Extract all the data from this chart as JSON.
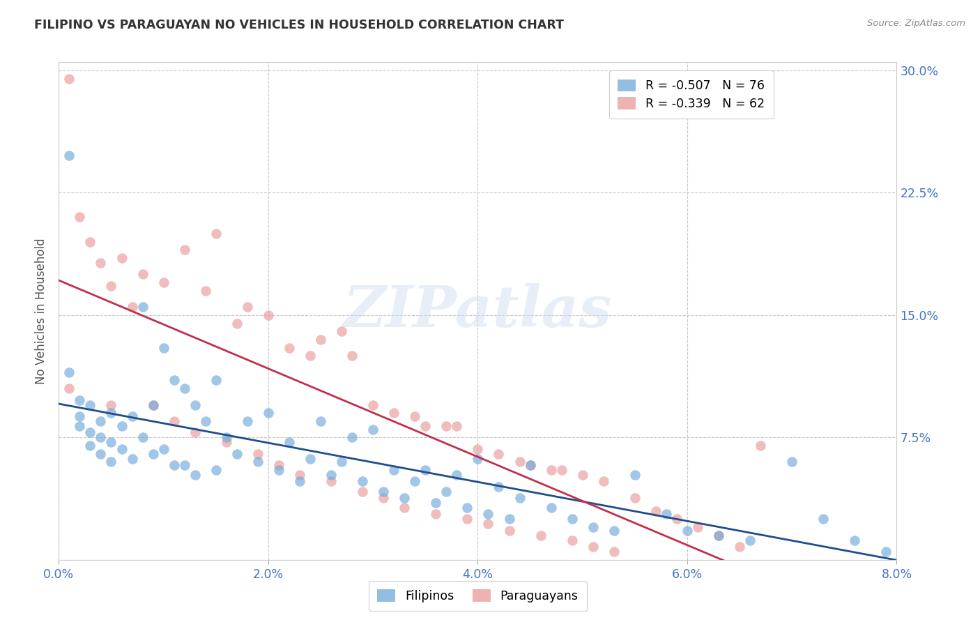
{
  "title": "FILIPINO VS PARAGUAYAN NO VEHICLES IN HOUSEHOLD CORRELATION CHART",
  "source": "Source: ZipAtlas.com",
  "ylabel": "No Vehicles in Household",
  "watermark": "ZIPatlas",
  "xlim": [
    0.0,
    0.08
  ],
  "ylim": [
    0.0,
    0.305
  ],
  "xticks": [
    0.0,
    0.02,
    0.04,
    0.06,
    0.08
  ],
  "yticks": [
    0.0,
    0.075,
    0.15,
    0.225,
    0.3
  ],
  "xtick_labels": [
    "0.0%",
    "2.0%",
    "4.0%",
    "6.0%",
    "8.0%"
  ],
  "right_ytick_labels": [
    "",
    "7.5%",
    "15.0%",
    "22.5%",
    "30.0%"
  ],
  "filipino_color": "#6fa8dc",
  "paraguayan_color": "#ea9999",
  "regression_blue": "#1f4e8c",
  "regression_pink": "#c0304a",
  "filipino_R": -0.507,
  "filipino_N": 76,
  "paraguayan_R": -0.339,
  "paraguayan_N": 62,
  "title_color": "#333333",
  "axis_label_color": "#4472c4",
  "grid_color": "#c8c8c8",
  "source_color": "#888888",
  "filipino_scatter_x": [
    0.001,
    0.001,
    0.002,
    0.002,
    0.002,
    0.003,
    0.003,
    0.003,
    0.004,
    0.004,
    0.004,
    0.005,
    0.005,
    0.005,
    0.006,
    0.006,
    0.007,
    0.007,
    0.008,
    0.008,
    0.009,
    0.009,
    0.01,
    0.01,
    0.011,
    0.011,
    0.012,
    0.012,
    0.013,
    0.013,
    0.014,
    0.015,
    0.015,
    0.016,
    0.017,
    0.018,
    0.019,
    0.02,
    0.021,
    0.022,
    0.023,
    0.024,
    0.025,
    0.026,
    0.027,
    0.028,
    0.029,
    0.03,
    0.031,
    0.032,
    0.033,
    0.034,
    0.035,
    0.036,
    0.037,
    0.038,
    0.039,
    0.04,
    0.041,
    0.042,
    0.043,
    0.044,
    0.045,
    0.047,
    0.049,
    0.051,
    0.053,
    0.055,
    0.058,
    0.06,
    0.063,
    0.066,
    0.07,
    0.073,
    0.076,
    0.079
  ],
  "filipino_scatter_y": [
    0.248,
    0.115,
    0.098,
    0.088,
    0.082,
    0.095,
    0.078,
    0.07,
    0.085,
    0.075,
    0.065,
    0.09,
    0.072,
    0.06,
    0.082,
    0.068,
    0.088,
    0.062,
    0.155,
    0.075,
    0.095,
    0.065,
    0.13,
    0.068,
    0.11,
    0.058,
    0.105,
    0.058,
    0.095,
    0.052,
    0.085,
    0.11,
    0.055,
    0.075,
    0.065,
    0.085,
    0.06,
    0.09,
    0.055,
    0.072,
    0.048,
    0.062,
    0.085,
    0.052,
    0.06,
    0.075,
    0.048,
    0.08,
    0.042,
    0.055,
    0.038,
    0.048,
    0.055,
    0.035,
    0.042,
    0.052,
    0.032,
    0.062,
    0.028,
    0.045,
    0.025,
    0.038,
    0.058,
    0.032,
    0.025,
    0.02,
    0.018,
    0.052,
    0.028,
    0.018,
    0.015,
    0.012,
    0.06,
    0.025,
    0.012,
    0.005
  ],
  "paraguayan_scatter_x": [
    0.001,
    0.001,
    0.002,
    0.003,
    0.004,
    0.005,
    0.005,
    0.006,
    0.007,
    0.008,
    0.009,
    0.01,
    0.011,
    0.012,
    0.013,
    0.014,
    0.015,
    0.016,
    0.017,
    0.018,
    0.019,
    0.02,
    0.021,
    0.022,
    0.023,
    0.024,
    0.025,
    0.026,
    0.027,
    0.028,
    0.029,
    0.03,
    0.031,
    0.032,
    0.033,
    0.034,
    0.035,
    0.036,
    0.037,
    0.038,
    0.039,
    0.04,
    0.041,
    0.042,
    0.043,
    0.044,
    0.045,
    0.046,
    0.047,
    0.048,
    0.049,
    0.05,
    0.051,
    0.052,
    0.053,
    0.055,
    0.057,
    0.059,
    0.061,
    0.063,
    0.065,
    0.067
  ],
  "paraguayan_scatter_y": [
    0.295,
    0.105,
    0.21,
    0.195,
    0.182,
    0.168,
    0.095,
    0.185,
    0.155,
    0.175,
    0.095,
    0.17,
    0.085,
    0.19,
    0.078,
    0.165,
    0.2,
    0.072,
    0.145,
    0.155,
    0.065,
    0.15,
    0.058,
    0.13,
    0.052,
    0.125,
    0.135,
    0.048,
    0.14,
    0.125,
    0.042,
    0.095,
    0.038,
    0.09,
    0.032,
    0.088,
    0.082,
    0.028,
    0.082,
    0.082,
    0.025,
    0.068,
    0.022,
    0.065,
    0.018,
    0.06,
    0.058,
    0.015,
    0.055,
    0.055,
    0.012,
    0.052,
    0.008,
    0.048,
    0.005,
    0.038,
    0.03,
    0.025,
    0.02,
    0.015,
    0.008,
    0.07
  ]
}
